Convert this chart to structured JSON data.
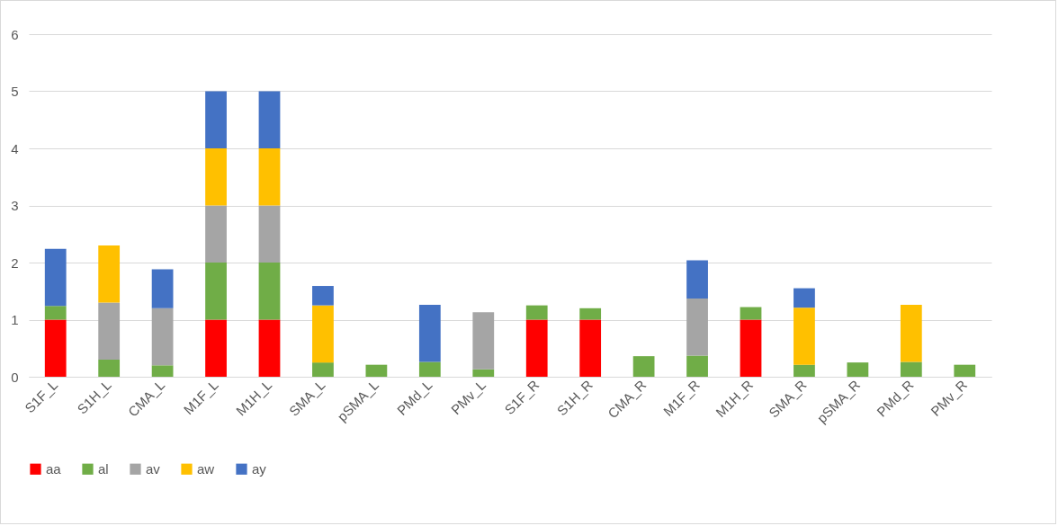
{
  "chart_data": {
    "type": "bar",
    "stacked": true,
    "categories": [
      "S1F_L",
      "S1H_L",
      "CMA_L",
      "M1F_L",
      "M1H_L",
      "SMA_L",
      "pSMA_L",
      "PMd_L",
      "PMv_L",
      "S1F_R",
      "S1H_R",
      "CMA_R",
      "M1F_R",
      "M1H_R",
      "SMA_R",
      "pSMA_R",
      "PMd_R",
      "PMv_R"
    ],
    "series": [
      {
        "name": "aa",
        "color": "#ff0000",
        "values": [
          1,
          null,
          null,
          1,
          1,
          null,
          null,
          null,
          null,
          1,
          1,
          null,
          null,
          1,
          null,
          null,
          null,
          null
        ]
      },
      {
        "name": "al",
        "color": "#70ad47",
        "values": [
          0.24,
          0.3,
          0.2,
          1,
          1,
          0.25,
          0.21,
          0.26,
          0.13,
          0.25,
          0.2,
          0.36,
          0.37,
          0.22,
          0.21,
          0.25,
          0.26,
          0.21
        ]
      },
      {
        "name": "av",
        "color": "#a5a5a5",
        "values": [
          null,
          1,
          1,
          1,
          1,
          null,
          null,
          null,
          1,
          null,
          null,
          null,
          1,
          null,
          null,
          null,
          null,
          null
        ]
      },
      {
        "name": "aw",
        "color": "#ffc000",
        "values": [
          null,
          1,
          null,
          1,
          1,
          1,
          null,
          null,
          null,
          null,
          null,
          null,
          null,
          null,
          1,
          null,
          1,
          null
        ]
      },
      {
        "name": "ay",
        "color": "#4472c4",
        "values": [
          1,
          null,
          0.68,
          1,
          1,
          0.34,
          null,
          1,
          null,
          null,
          null,
          null,
          0.67,
          null,
          0.34,
          null,
          null,
          null
        ]
      }
    ],
    "ylim": [
      0,
      6
    ],
    "yticks": [
      0,
      1,
      2,
      3,
      4,
      5,
      6
    ],
    "grid": "y",
    "legend": "bottom"
  }
}
